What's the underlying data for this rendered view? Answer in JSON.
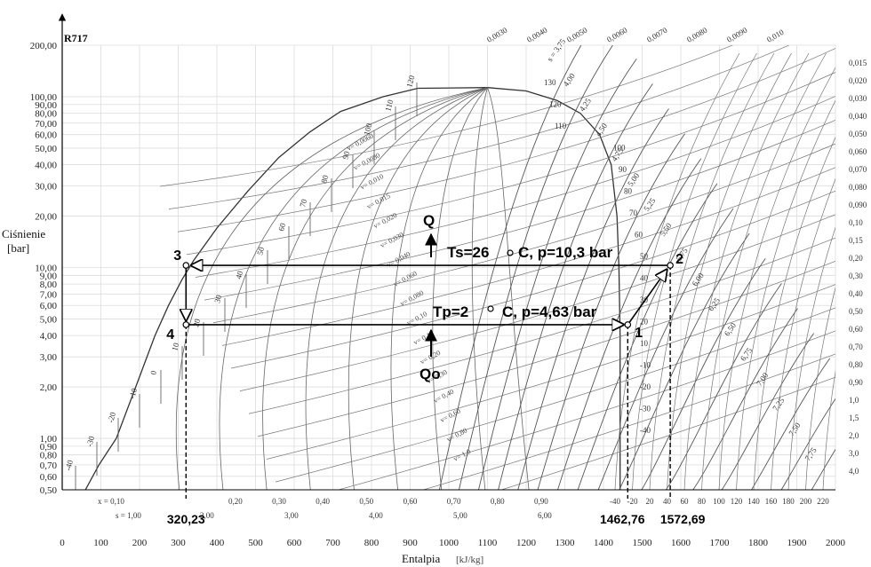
{
  "chart_data": {
    "type": "line",
    "refrigerant": "R717",
    "xlabel": "Entalpia",
    "xlabel_unit": "[kJ/kg]",
    "ylabel": "Ciśnienie",
    "ylabel_unit": "[bar]",
    "xlim": [
      0,
      2000
    ],
    "ylim": [
      0.5,
      200
    ],
    "y_scale": "log",
    "grid": true,
    "x_ticks": [
      "0",
      "100",
      "200",
      "300",
      "400",
      "500",
      "600",
      "700",
      "800",
      "900",
      "1000",
      "1100",
      "1200",
      "1300",
      "1400",
      "1500",
      "1600",
      "1700",
      "1800",
      "1900",
      "2000"
    ],
    "y_ticks": [
      {
        "v": 200,
        "t": "200,00"
      },
      {
        "v": 100,
        "t": "100,00"
      },
      {
        "v": 90,
        "t": "90,00"
      },
      {
        "v": 80,
        "t": "80,00"
      },
      {
        "v": 70,
        "t": "70,00"
      },
      {
        "v": 60,
        "t": "60,00"
      },
      {
        "v": 50,
        "t": "50,00"
      },
      {
        "v": 40,
        "t": "40,00"
      },
      {
        "v": 30,
        "t": "30,00"
      },
      {
        "v": 20,
        "t": "20,00"
      },
      {
        "v": 10,
        "t": "10,00"
      },
      {
        "v": 9,
        "t": "9,00"
      },
      {
        "v": 8,
        "t": "8,00"
      },
      {
        "v": 7,
        "t": "7,00"
      },
      {
        "v": 6,
        "t": "6,00"
      },
      {
        "v": 5,
        "t": "5,00"
      },
      {
        "v": 4,
        "t": "4,00"
      },
      {
        "v": 3,
        "t": "3,00"
      },
      {
        "v": 2,
        "t": "2,00"
      },
      {
        "v": 1,
        "t": "1,00"
      },
      {
        "v": 0.9,
        "t": "0,90"
      },
      {
        "v": 0.8,
        "t": "0,80"
      },
      {
        "v": 0.7,
        "t": "0,70"
      },
      {
        "v": 0.6,
        "t": "0,60"
      },
      {
        "v": 0.5,
        "t": "0,50"
      }
    ],
    "cycle": {
      "points": [
        {
          "name": "1",
          "h": 1462.76,
          "p": 4.63
        },
        {
          "name": "2",
          "h": 1572.69,
          "p": 10.3
        },
        {
          "name": "3",
          "h": 320.23,
          "p": 10.3
        },
        {
          "name": "4",
          "h": 320.23,
          "p": 4.63
        }
      ],
      "h_labels": [
        "320,23",
        "1462,76",
        "1572,69"
      ],
      "condensing_label": "Ts=26",
      "condensing_unit": "C, p=10,3 bar",
      "evaporating_label": "Tp=2",
      "evaporating_unit": "C, p=4,63 bar",
      "heat_out": "Q",
      "heat_in": "Qo"
    },
    "quality_labels": [
      "x = 0,10",
      "0,20",
      "0,30",
      "0,40",
      "0,50",
      "0,60",
      "0,70",
      "0,80",
      "0,90"
    ],
    "entropy_liquid_labels": [
      "s = 1,00",
      "2,00",
      "3,00",
      "4,00",
      "5,00",
      "6,00"
    ],
    "entropy_vapor_labels": [
      "s = 3,75",
      "4,00",
      "4,25",
      "4,50",
      "4,75",
      "5,00",
      "5,25",
      "5,50",
      "5,75",
      "6,00",
      "6,25",
      "6,50",
      "6,75",
      "7,00",
      "7,25",
      "7,50",
      "7,75"
    ],
    "volume_labels": [
      "v= 0,0060",
      "v= 0,0080",
      "v= 0,010",
      "v= 0,015",
      "v= 0,020",
      "v= 0,030",
      "v= 0,040",
      "v= 0,060",
      "v= 0,080",
      "v= 0,10",
      "v= 0,15",
      "v= 0,20",
      "v= 0,30",
      "v= 0,40",
      "v= 0,60",
      "v= 0,80",
      "v= 1,0"
    ],
    "volume_right_labels": [
      "0,015",
      "0,020",
      "0,030",
      "0,040",
      "0,050",
      "0,060",
      "0,070",
      "0,080",
      "0,090",
      "0,10",
      "0,15",
      "0,20",
      "0,30",
      "0,40",
      "0,50",
      "0,60",
      "0,70",
      "0,80",
      "0,90",
      "1,0",
      "1,5",
      "2,0",
      "3,0",
      "4,0"
    ],
    "volume_top_labels": [
      "0,0030",
      "0,0040",
      "0,0050",
      "0,0060",
      "0,0070",
      "0,0080",
      "0,0090",
      "0,010"
    ],
    "temp_liquid_labels": [
      "-40",
      "-30",
      "-20",
      "-10",
      "0",
      "10",
      "20",
      "30",
      "40",
      "50",
      "60",
      "70",
      "80",
      "90",
      "100",
      "110",
      "120"
    ],
    "temp_vapor_labels": [
      "130",
      "120",
      "110",
      "100",
      "90",
      "80",
      "70",
      "60",
      "50",
      "40",
      "30",
      "20",
      "10",
      "-10",
      "-20",
      "-30",
      "-40"
    ],
    "temp_bottom_labels": [
      "-40",
      "-20",
      "20",
      "40",
      "60",
      "80",
      "100",
      "120",
      "140",
      "160",
      "180",
      "200",
      "220"
    ]
  }
}
